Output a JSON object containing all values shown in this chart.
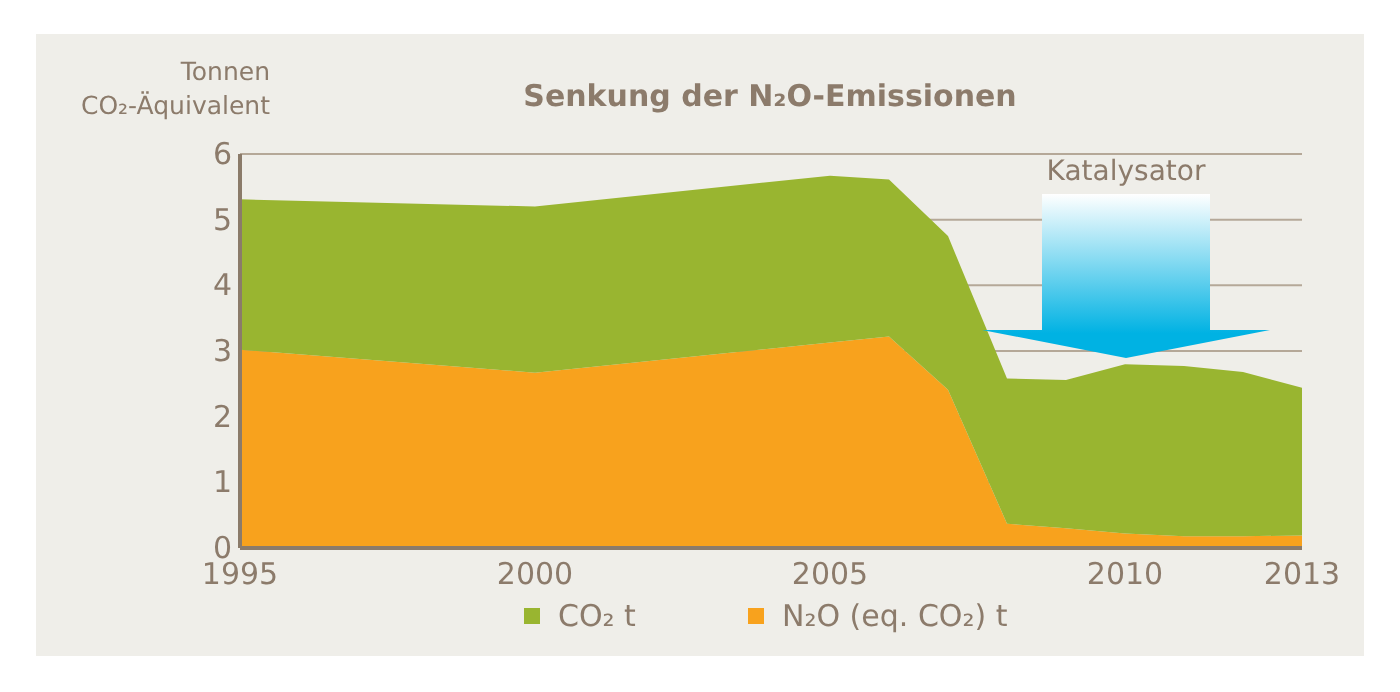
{
  "chart_data": {
    "type": "area",
    "title": "Senkung der N₂O-Emissionen",
    "ylabel": "Tonnen\nCO₂-Äquivalent",
    "x": [
      1995,
      2000,
      2005,
      2006,
      2007,
      2008,
      2009,
      2010,
      2011,
      2012,
      2013
    ],
    "stacked": true,
    "series": [
      {
        "name": "N₂O (eq. CO₂) t",
        "color": "#f8a21d",
        "values": [
          3.02,
          2.67,
          3.13,
          3.22,
          2.41,
          0.37,
          0.3,
          0.22,
          0.18,
          0.18,
          0.19
        ]
      },
      {
        "name": "CO₂ t",
        "color": "#99b530",
        "values": [
          2.29,
          2.53,
          2.54,
          2.39,
          2.34,
          2.21,
          2.26,
          2.58,
          2.59,
          2.5,
          2.25
        ]
      }
    ],
    "xlim": [
      1995,
      2013
    ],
    "xticks": [
      1995,
      2000,
      2005,
      2010,
      2013
    ],
    "ylim": [
      0,
      6
    ],
    "yticks": [
      0,
      1,
      2,
      3,
      4,
      5,
      6
    ],
    "grid": "y",
    "legend": "bottom",
    "annotations": [
      "Katalysator"
    ]
  }
}
